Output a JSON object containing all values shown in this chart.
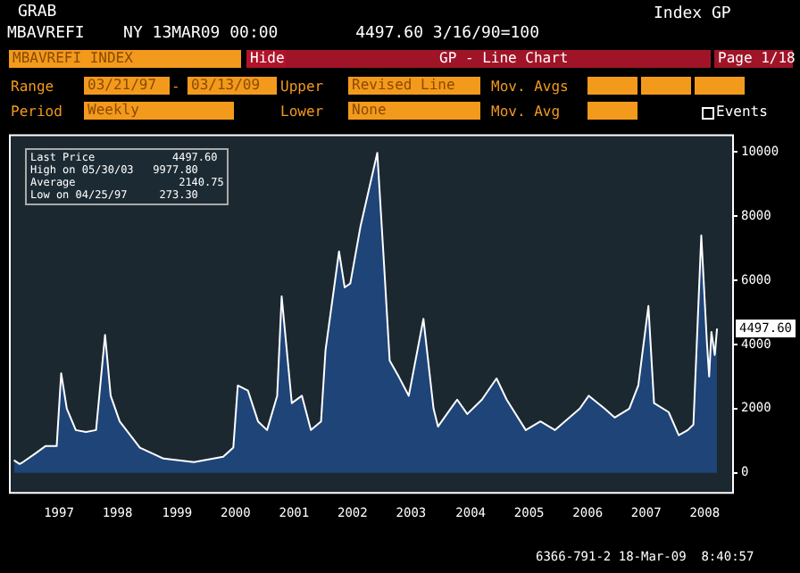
{
  "chart_data": {
    "type": "area",
    "title": "MBAVREFI INDEX",
    "subtitle": "MBAVREFI    NY 13MAR09 00:00        4497.60 3/16/90=100",
    "x": [
      "1997-03-21",
      "1997-04-25",
      "1997-05-16",
      "1997-08-01",
      "1997-10-03",
      "1997-12-12",
      "1998-01-09",
      "1998-02-13",
      "1998-04-10",
      "1998-06-12",
      "1998-08-14",
      "1998-10-09",
      "1998-11-13",
      "1999-01-08",
      "1999-05-14",
      "1999-10-08",
      "2000-04-14",
      "2000-10-13",
      "2000-12-15",
      "2001-01-12",
      "2001-03-16",
      "2001-05-18",
      "2001-07-13",
      "2001-09-14",
      "2001-10-12",
      "2001-12-14",
      "2002-02-15",
      "2002-04-12",
      "2002-06-14",
      "2002-07-12",
      "2002-10-04",
      "2002-11-08",
      "2002-12-13",
      "2003-02-14",
      "2003-05-30",
      "2003-07-11",
      "2003-08-15",
      "2003-10-10",
      "2003-12-12",
      "2004-03-12",
      "2004-05-14",
      "2004-06-11",
      "2004-10-08",
      "2004-12-10",
      "2005-03-11",
      "2005-06-10",
      "2005-08-12",
      "2005-12-09",
      "2006-03-10",
      "2006-06-09",
      "2006-11-10",
      "2007-01-05",
      "2007-04-13",
      "2007-06-15",
      "2007-09-14",
      "2007-11-09",
      "2008-01-11",
      "2008-02-15",
      "2008-05-16",
      "2008-07-18",
      "2008-09-12",
      "2008-10-17",
      "2008-12-05",
      "2009-01-09",
      "2009-01-23",
      "2009-02-06",
      "2009-02-27",
      "2009-03-13"
    ],
    "series": [
      {
        "color": "#1e4478",
        "values": [
          390,
          273.3,
          330,
          600,
          830,
          830,
          3100,
          2000,
          1330,
          1270,
          1330,
          4300,
          2400,
          1600,
          780,
          440,
          330,
          500,
          780,
          2720,
          2560,
          1600,
          1330,
          2400,
          5500,
          2170,
          2400,
          1330,
          1600,
          3830,
          6900,
          5780,
          5900,
          7670,
          9977.8,
          6500,
          3500,
          3000,
          2400,
          4800,
          2000,
          1440,
          2280,
          1830,
          2280,
          2940,
          2280,
          1330,
          1600,
          1330,
          2000,
          2400,
          2000,
          1720,
          2000,
          2720,
          5200,
          2170,
          1890,
          1170,
          1330,
          1500,
          7400,
          4060,
          3000,
          4390,
          3670,
          4497.6
        ]
      }
    ],
    "xlim": [
      "1997-03-01",
      "2009-06-15"
    ],
    "xticks": [
      {
        "value": "1997-12-26",
        "label": "1997"
      },
      {
        "value": "1998-12-25",
        "label": "1998"
      },
      {
        "value": "1999-12-31",
        "label": "1999"
      },
      {
        "value": "2000-12-29",
        "label": "2000"
      },
      {
        "value": "2001-12-28",
        "label": "2001"
      },
      {
        "value": "2002-12-27",
        "label": "2002"
      },
      {
        "value": "2003-12-26",
        "label": "2003"
      },
      {
        "value": "2004-12-31",
        "label": "2004"
      },
      {
        "value": "2005-12-30",
        "label": "2005"
      },
      {
        "value": "2006-12-29",
        "label": "2006"
      },
      {
        "value": "2007-12-28",
        "label": "2007"
      },
      {
        "value": "2008-12-26",
        "label": "2008"
      }
    ],
    "ylim": [
      -600,
      10500
    ],
    "yticks": [
      0,
      2000,
      4000,
      6000,
      8000,
      10000
    ],
    "annotations": [
      "GRAB",
      "Index GP",
      "Hide",
      "GP - Line Chart",
      "Page 1/18",
      "Range",
      "03/21/97",
      "03/13/09",
      "Upper",
      "Revised Line",
      "Mov. Avgs",
      "Period",
      "Weekly",
      "Lower",
      "None",
      "Mov. Avg",
      "Events",
      "Last Price            4497.60",
      "High on 05/30/03   9977.80",
      "Average                2140.75",
      "Low on 04/25/97     273.30",
      {
        "text": "4497.60",
        "x": "2009-03-13",
        "y": 4497.6
      },
      "6366-791-2 18-Mar-09  8:40:57",
      "-"
    ]
  }
}
